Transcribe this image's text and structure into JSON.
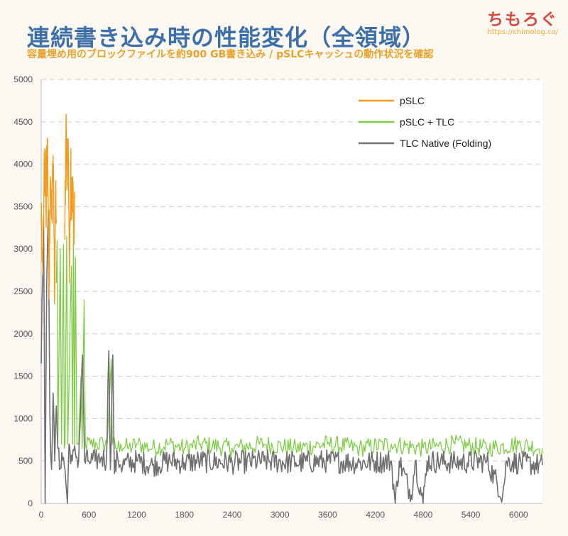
{
  "header": {
    "title": "連続書き込み時の性能変化（全領域）",
    "subtitle": "容量埋め用のブロックファイルを約900 GB書き込み / pSLCキャッシュの動作状況を確認"
  },
  "brand": {
    "logo": "ちもろぐ",
    "url": "https://chimolog.co/"
  },
  "chart_data": {
    "type": "line",
    "title": "連続書き込み時の性能変化（全領域）",
    "xlabel": "",
    "ylabel": "",
    "xlim": [
      0,
      6300
    ],
    "ylim": [
      0,
      5000
    ],
    "xticks": [
      0,
      600,
      1200,
      1800,
      2400,
      3000,
      3600,
      4200,
      4800,
      5400,
      6000
    ],
    "yticks": [
      0,
      500,
      1000,
      1500,
      2000,
      2500,
      3000,
      3500,
      4000,
      4500,
      5000
    ],
    "grid": "horizontal dashed",
    "legend_position": "top-right",
    "series": [
      {
        "name": "pSLC",
        "color": "#f39c1f",
        "segments": [
          [
            [
              0,
              3300
            ],
            [
              20,
              2700
            ],
            [
              40,
              4150
            ],
            [
              60,
              3500
            ],
            [
              80,
              4300
            ],
            [
              100,
              2550
            ],
            [
              115,
              3850
            ],
            [
              130,
              3350
            ],
            [
              150,
              4100
            ],
            [
              170,
              2500
            ],
            [
              180,
              3650
            ],
            [
              190,
              3300
            ]
          ],
          [
            [
              295,
              3300
            ],
            [
              310,
              4350
            ],
            [
              325,
              3800
            ],
            [
              340,
              4300
            ],
            [
              355,
              2600
            ],
            [
              370,
              3950
            ],
            [
              385,
              3350
            ],
            [
              395,
              3850
            ],
            [
              410,
              3100
            ],
            [
              425,
              3600
            ]
          ]
        ],
        "levels": [
          {
            "x": [
              0,
              190
            ],
            "y": 3600
          },
          {
            "x": [
              295,
              425
            ],
            "y": 3500
          }
        ]
      },
      {
        "name": "pSLC + TLC",
        "color": "#7fcc47",
        "points": [
          [
            190,
            2600
          ],
          [
            200,
            3100
          ],
          [
            210,
            700
          ],
          [
            240,
            3000
          ],
          [
            255,
            700
          ],
          [
            280,
            3050
          ],
          [
            290,
            650
          ],
          [
            300,
            700
          ],
          [
            320,
            3150
          ],
          [
            335,
            700
          ],
          [
            380,
            2800
          ],
          [
            395,
            700
          ],
          [
            405,
            3250
          ],
          [
            420,
            650
          ],
          [
            430,
            2900
          ],
          [
            450,
            700
          ],
          [
            470,
            700
          ],
          [
            500,
            1500
          ],
          [
            515,
            650
          ],
          [
            540,
            2400
          ],
          [
            555,
            700
          ],
          [
            620,
            700
          ],
          [
            700,
            700
          ],
          [
            780,
            700
          ],
          [
            830,
            700
          ],
          [
            880,
            1700
          ],
          [
            895,
            700
          ],
          [
            960,
            650
          ],
          [
            1000,
            700
          ],
          [
            1100,
            650
          ],
          [
            1200,
            700
          ],
          [
            1400,
            650
          ],
          [
            1600,
            700
          ],
          [
            1800,
            650
          ],
          [
            2000,
            700
          ],
          [
            2400,
            650
          ],
          [
            2800,
            700
          ],
          [
            3200,
            650
          ],
          [
            3600,
            700
          ],
          [
            4000,
            650
          ],
          [
            4400,
            700
          ],
          [
            4800,
            650
          ],
          [
            5200,
            700
          ],
          [
            5600,
            650
          ],
          [
            6000,
            700
          ],
          [
            6300,
            650
          ]
        ]
      },
      {
        "name": "TLC Native (Folding)",
        "color": "#707070",
        "points": [
          [
            0,
            1650
          ],
          [
            30,
            3400
          ],
          [
            50,
            0
          ],
          [
            70,
            2600
          ],
          [
            90,
            3450
          ],
          [
            110,
            1000
          ],
          [
            130,
            400
          ],
          [
            150,
            1300
          ],
          [
            170,
            500
          ],
          [
            190,
            1150
          ],
          [
            210,
            650
          ],
          [
            230,
            400
          ],
          [
            260,
            600
          ],
          [
            300,
            400
          ],
          [
            330,
            0
          ],
          [
            350,
            700
          ],
          [
            390,
            500
          ],
          [
            430,
            600
          ],
          [
            470,
            500
          ],
          [
            520,
            1750
          ],
          [
            545,
            500
          ],
          [
            600,
            500
          ],
          [
            680,
            500
          ],
          [
            760,
            550
          ],
          [
            820,
            500
          ],
          [
            850,
            1800
          ],
          [
            870,
            400
          ],
          [
            900,
            1750
          ],
          [
            920,
            350
          ],
          [
            960,
            550
          ],
          [
            1000,
            450
          ],
          [
            1200,
            500
          ],
          [
            1400,
            450
          ],
          [
            1600,
            500
          ],
          [
            1800,
            480
          ],
          [
            2000,
            500
          ],
          [
            2400,
            480
          ],
          [
            2800,
            500
          ],
          [
            3200,
            480
          ],
          [
            3600,
            500
          ],
          [
            4000,
            480
          ],
          [
            4400,
            500
          ],
          [
            4450,
            0
          ],
          [
            4500,
            500
          ],
          [
            4650,
            100
          ],
          [
            4700,
            500
          ],
          [
            4800,
            0
          ],
          [
            4850,
            500
          ],
          [
            5200,
            480
          ],
          [
            5600,
            500
          ],
          [
            5800,
            100
          ],
          [
            5850,
            500
          ],
          [
            6000,
            480
          ],
          [
            6300,
            450
          ]
        ]
      }
    ]
  }
}
